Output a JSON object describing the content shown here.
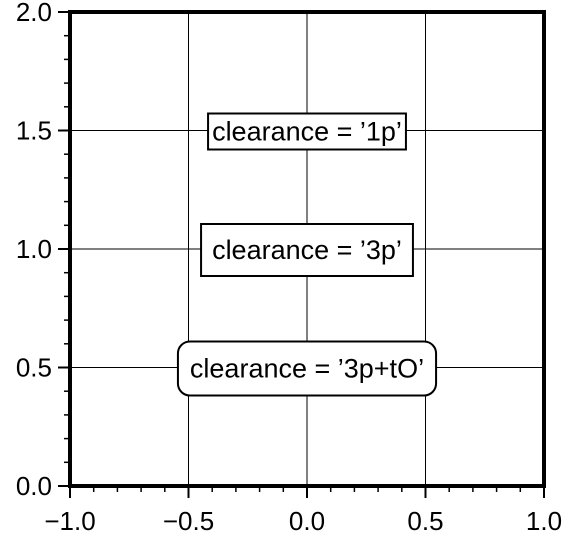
{
  "chart_data": {
    "type": "scatter",
    "title": "",
    "xlabel": "",
    "ylabel": "",
    "xlim": [
      -1.0,
      1.0
    ],
    "ylim": [
      0.0,
      2.0
    ],
    "grid": true,
    "x_ticks": [
      -1.0,
      -0.5,
      0.0,
      0.5,
      1.0
    ],
    "x_tick_labels": [
      "−1.0",
      "−0.5",
      "0.0",
      "0.5",
      "1.0"
    ],
    "y_ticks": [
      0.0,
      0.5,
      1.0,
      1.5,
      2.0
    ],
    "y_tick_labels": [
      "0.0",
      "0.5",
      "1.0",
      "1.5",
      "2.0"
    ],
    "annotations": [
      {
        "x": 0.0,
        "y": 1.5,
        "text": "clearance = ’1p’",
        "box": "square"
      },
      {
        "x": 0.0,
        "y": 1.0,
        "text": "clearance = ’3p’",
        "box": "square"
      },
      {
        "x": 0.0,
        "y": 0.5,
        "text": "clearance = ’3p+tO’",
        "box": "rounded"
      }
    ]
  }
}
